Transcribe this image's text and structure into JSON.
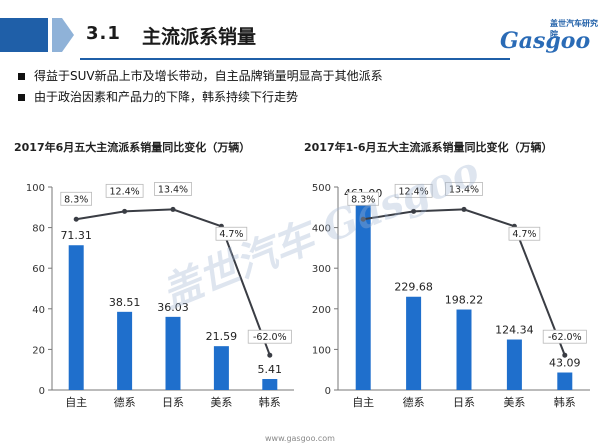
{
  "header": {
    "section_number": "3.1",
    "title": "主流派系销量"
  },
  "logo": {
    "subtitle": "盖世汽车研究院",
    "wordmark": "Gasgoo"
  },
  "bullets": [
    "得益于SUV新品上市及增长带动，自主品牌销量明显高于其他派系",
    "由于政治因素和产品力的下降，韩系持续下行走势"
  ],
  "watermark": "盖世汽车 Gasgoo",
  "footer": "www.gasgoo.com",
  "colors": {
    "bar": "#1f6fcc",
    "line": "#3a3d44",
    "accent": "#1f5fa8"
  },
  "chart_data": [
    {
      "type": "bar",
      "title": "2017年6月五大主流派系销量同比变化（万辆）",
      "categories": [
        "自主",
        "德系",
        "日系",
        "美系",
        "韩系"
      ],
      "values": [
        71.31,
        38.51,
        36.03,
        21.59,
        5.41
      ],
      "value_labels": [
        "71.31",
        "38.51",
        "36.03",
        "21.59",
        "5.41"
      ],
      "growth": [
        8.3,
        12.4,
        13.4,
        4.7,
        -62.0
      ],
      "growth_labels": [
        "8.3%",
        "12.4%",
        "13.4%",
        "4.7%",
        "-62.0%"
      ],
      "ylim": [
        0,
        100
      ],
      "yticks": [
        0,
        20,
        40,
        60,
        80,
        100
      ],
      "growth_range": [
        -80,
        25
      ]
    },
    {
      "type": "bar",
      "title": "2017年1-6月五大主流派系销量同比变化（万辆）",
      "categories": [
        "自主",
        "德系",
        "日系",
        "美系",
        "韩系"
      ],
      "values": [
        461.0,
        229.68,
        198.22,
        124.34,
        43.09
      ],
      "value_labels": [
        "461.00",
        "229.68",
        "198.22",
        "124.34",
        "43.09"
      ],
      "growth": [
        8.3,
        12.4,
        13.4,
        4.7,
        -62.0
      ],
      "growth_labels": [
        "8.3%",
        "12.4%",
        "13.4%",
        "4.7%",
        "-62.0%"
      ],
      "ylim": [
        0,
        500
      ],
      "yticks": [
        0,
        100,
        200,
        300,
        400,
        500
      ],
      "growth_range": [
        -80,
        25
      ]
    }
  ]
}
